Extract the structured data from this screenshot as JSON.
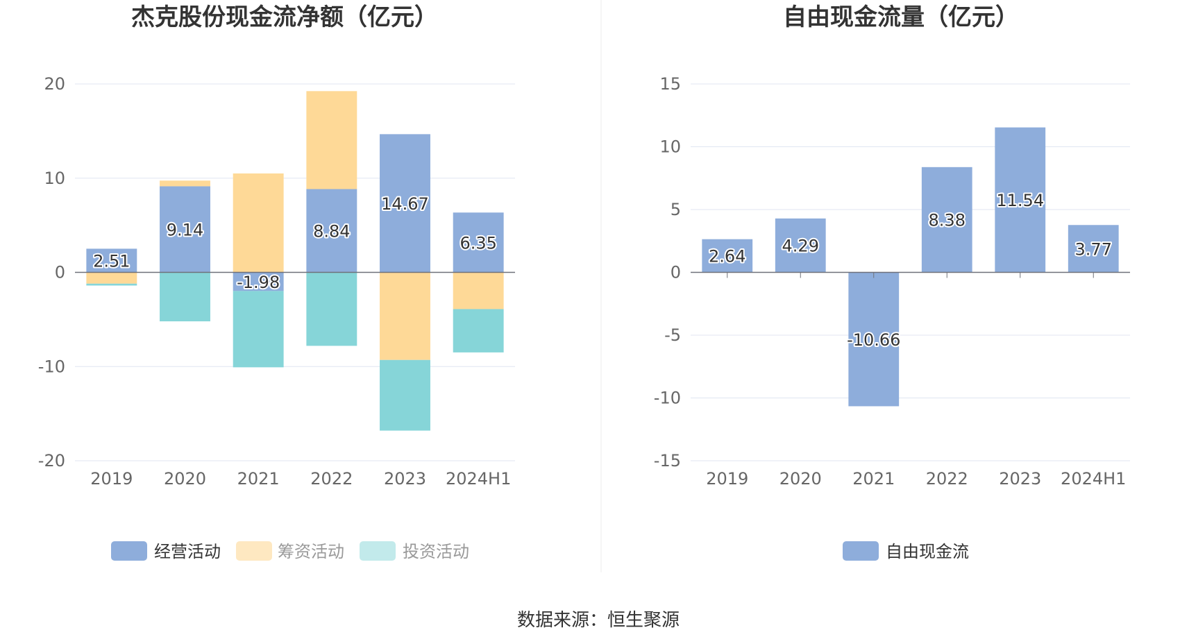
{
  "source": "数据来源：恒生聚源",
  "colors": {
    "operating": "#8eaddb",
    "financing": "#fed997",
    "investing": "#86d5d8",
    "fcf": "#8eaddb",
    "grid": "#e0e6f1",
    "axis": "#6e7079"
  },
  "chart_data": [
    {
      "type": "bar",
      "stacked": true,
      "title": "杰克股份现金流净额（亿元）",
      "categories": [
        "2019",
        "2020",
        "2021",
        "2022",
        "2023",
        "2024H1"
      ],
      "ylim": [
        -20,
        20
      ],
      "yticks": [
        20,
        10,
        0,
        -10,
        -20
      ],
      "grid": true,
      "legend_position": "bottom",
      "series": [
        {
          "name": "经营活动",
          "values": [
            2.51,
            9.14,
            -1.98,
            8.84,
            14.67,
            6.35
          ],
          "labels": [
            "2.51",
            "9.14",
            "-1.98",
            "8.84",
            "14.67",
            "6.35"
          ]
        },
        {
          "name": "筹资活动",
          "values": [
            -1.2,
            0.6,
            10.5,
            10.4,
            -9.3,
            -3.9
          ]
        },
        {
          "name": "投资活动",
          "values": [
            -0.2,
            -5.2,
            -8.1,
            -7.8,
            -7.5,
            -4.6
          ]
        }
      ]
    },
    {
      "type": "bar",
      "title": "自由现金流量（亿元）",
      "categories": [
        "2019",
        "2020",
        "2021",
        "2022",
        "2023",
        "2024H1"
      ],
      "ylim": [
        -15,
        15
      ],
      "yticks": [
        15,
        10,
        5,
        0,
        -5,
        -10,
        -15
      ],
      "grid": true,
      "legend_position": "bottom",
      "series": [
        {
          "name": "自由现金流",
          "values": [
            2.64,
            4.29,
            -10.66,
            8.38,
            11.54,
            3.77
          ],
          "labels": [
            "2.64",
            "4.29",
            "-10.66",
            "8.38",
            "11.54",
            "3.77"
          ]
        }
      ]
    }
  ]
}
